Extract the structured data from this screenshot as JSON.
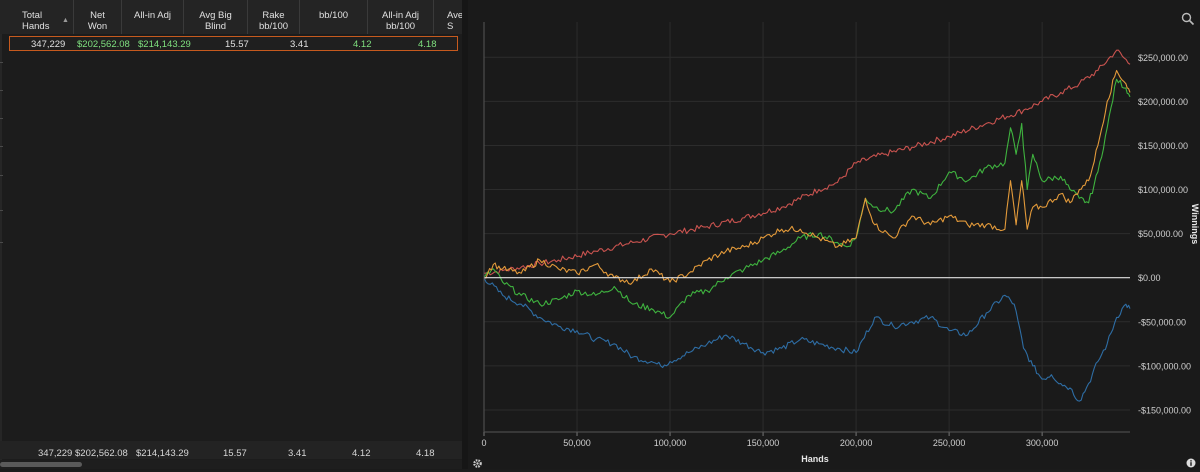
{
  "table": {
    "headers": [
      {
        "label": "Total\nHands",
        "sorted": true
      },
      {
        "label": "Net\nWon"
      },
      {
        "label": "All-in Adj"
      },
      {
        "label": "Avg Big\nBlind"
      },
      {
        "label": "Rake\nbb/100"
      },
      {
        "label": "bb/100"
      },
      {
        "label": "All-in Adj\nbb/100"
      },
      {
        "label": "Ave\nS"
      }
    ],
    "row": {
      "total_hands": "347,229",
      "net_won": "$202,562.08",
      "allin_adj": "$214,143.29",
      "avg_big_blind": "15.57",
      "rake_bb100": "3.41",
      "bb100": "4.12",
      "allin_adj_bb100": "4.18"
    },
    "footer": {
      "total_hands": "347,229",
      "net_won": "$202,562.08",
      "allin_adj": "$214,143.29",
      "avg_big_blind": "15.57",
      "rake_bb100": "3.41",
      "bb100": "4.12",
      "allin_adj_bb100": "4.18"
    }
  },
  "icons": {
    "search": "search-icon",
    "settings": "gear-icon",
    "info": "info-icon"
  },
  "chart_data": {
    "type": "line",
    "title": "",
    "xlabel": "Hands",
    "ylabel": "Winnings",
    "xlim": [
      0,
      347229
    ],
    "ylim": [
      -175000,
      290000
    ],
    "x_ticks": [
      0,
      50000,
      100000,
      150000,
      200000,
      250000,
      300000
    ],
    "x_tick_labels": [
      "0",
      "50,000",
      "100,000",
      "150,000",
      "200,000",
      "250,000",
      "300,000"
    ],
    "y_ticks": [
      250000,
      200000,
      150000,
      100000,
      50000,
      0,
      -50000,
      -100000,
      -150000
    ],
    "y_tick_labels": [
      "$250,000.00",
      "$200,000.00",
      "$150,000.00",
      "$100,000.00",
      "$50,000.00",
      "$0.00",
      "-$50,000.00",
      "-$100,000.00",
      "-$150,000.00"
    ],
    "grid": true,
    "series": [
      {
        "color": "#c9534f",
        "x": [
          0,
          10000,
          20000,
          30000,
          40000,
          60000,
          80000,
          100000,
          120000,
          140000,
          160000,
          180000,
          190000,
          200000,
          215000,
          230000,
          250000,
          270000,
          290000,
          300000,
          310000,
          320000,
          330000,
          340000,
          347229
        ],
        "y": [
          5000,
          8000,
          12000,
          16000,
          20000,
          30000,
          40000,
          50000,
          58000,
          68000,
          80000,
          100000,
          108000,
          130000,
          140000,
          148000,
          160000,
          175000,
          190000,
          200000,
          210000,
          220000,
          235000,
          258000,
          242000
        ]
      },
      {
        "color": "#2e6da4",
        "x": [
          0,
          10000,
          20000,
          30000,
          40000,
          50000,
          60000,
          70000,
          80000,
          90000,
          95000,
          100000,
          110000,
          120000,
          130000,
          140000,
          150000,
          160000,
          170000,
          180000,
          190000,
          200000,
          210000,
          220000,
          230000,
          240000,
          250000,
          260000,
          270000,
          280000,
          285000,
          290000,
          295000,
          300000,
          305000,
          310000,
          315000,
          320000,
          325000,
          330000,
          335000,
          340000,
          345000,
          347229
        ],
        "y": [
          0,
          -20000,
          -30000,
          -45000,
          -55000,
          -60000,
          -70000,
          -75000,
          -90000,
          -95000,
          -100000,
          -95000,
          -85000,
          -75000,
          -65000,
          -75000,
          -85000,
          -80000,
          -70000,
          -75000,
          -80000,
          -85000,
          -45000,
          -55000,
          -50000,
          -45000,
          -60000,
          -65000,
          -40000,
          -20000,
          -30000,
          -80000,
          -100000,
          -115000,
          -110000,
          -120000,
          -125000,
          -140000,
          -120000,
          -95000,
          -75000,
          -45000,
          -30000,
          -35000
        ]
      },
      {
        "color": "#3fb33f",
        "x": [
          0,
          5000,
          10000,
          20000,
          30000,
          40000,
          50000,
          60000,
          70000,
          80000,
          90000,
          100000,
          110000,
          120000,
          130000,
          140000,
          150000,
          160000,
          170000,
          180000,
          190000,
          195000,
          200000,
          205000,
          210000,
          220000,
          230000,
          240000,
          250000,
          260000,
          270000,
          280000,
          283000,
          286000,
          289000,
          292000,
          295000,
          300000,
          310000,
          315000,
          320000,
          325000,
          330000,
          335000,
          340000,
          345000,
          347229
        ],
        "y": [
          0,
          10000,
          -5000,
          -20000,
          -30000,
          -25000,
          -15000,
          -20000,
          -10000,
          -30000,
          -35000,
          -45000,
          -20000,
          -15000,
          0,
          10000,
          20000,
          30000,
          45000,
          50000,
          40000,
          35000,
          45000,
          90000,
          80000,
          75000,
          100000,
          90000,
          120000,
          110000,
          125000,
          130000,
          170000,
          140000,
          175000,
          100000,
          140000,
          110000,
          115000,
          100000,
          90000,
          85000,
          120000,
          170000,
          225000,
          215000,
          205000
        ]
      },
      {
        "color": "#e39a3a",
        "x": [
          0,
          5000,
          10000,
          20000,
          30000,
          40000,
          50000,
          60000,
          70000,
          80000,
          90000,
          100000,
          110000,
          120000,
          130000,
          140000,
          150000,
          160000,
          170000,
          180000,
          190000,
          200000,
          205000,
          210000,
          220000,
          230000,
          240000,
          250000,
          260000,
          270000,
          280000,
          283000,
          286000,
          289000,
          292000,
          295000,
          300000,
          310000,
          315000,
          320000,
          325000,
          330000,
          335000,
          340000,
          345000,
          347229
        ],
        "y": [
          0,
          15000,
          10000,
          5000,
          20000,
          10000,
          5000,
          15000,
          0,
          -5000,
          10000,
          -5000,
          5000,
          20000,
          30000,
          35000,
          45000,
          55000,
          55000,
          45000,
          35000,
          45000,
          90000,
          60000,
          45000,
          70000,
          60000,
          70000,
          60000,
          60000,
          55000,
          110000,
          60000,
          110000,
          55000,
          80000,
          80000,
          95000,
          85000,
          100000,
          110000,
          150000,
          200000,
          235000,
          220000,
          210000
        ]
      },
      {
        "color": "#e0e0e0",
        "x": [
          0,
          347229
        ],
        "y": [
          0,
          0
        ]
      }
    ]
  }
}
